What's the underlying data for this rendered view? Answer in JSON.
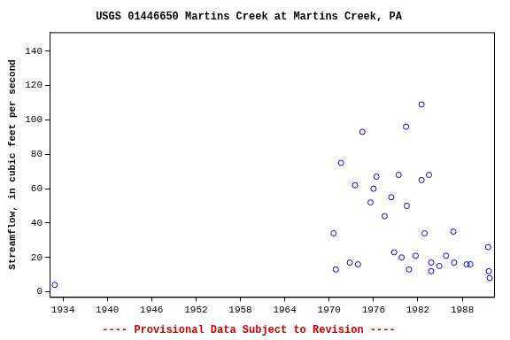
{
  "chart_data": {
    "type": "scatter",
    "title": "USGS 01446650 Martins Creek at Martins Creek, PA",
    "annotation": "---- Provisional Data Subject to Revision ----",
    "y_label": "Streamflow, in cubic feet per second",
    "x": [
      1932.9,
      1970.6,
      1970.9,
      1971.6,
      1972.8,
      1973.5,
      1973.9,
      1974.5,
      1975.6,
      1976.0,
      1976.4,
      1977.5,
      1978.4,
      1978.8,
      1979.4,
      1979.8,
      1980.4,
      1980.5,
      1980.8,
      1981.7,
      1982.5,
      1982.5,
      1982.9,
      1983.5,
      1983.8,
      1983.8,
      1984.9,
      1985.8,
      1986.8,
      1986.9,
      1988.6,
      1989.1,
      1991.5,
      1991.6,
      1991.7
    ],
    "values": [
      4,
      34,
      13,
      75,
      17,
      62,
      16,
      93,
      52,
      60,
      67,
      44,
      55,
      23,
      68,
      20,
      96,
      50,
      13,
      21,
      109,
      65,
      34,
      68,
      17,
      12,
      15,
      21,
      35,
      17,
      16,
      16,
      26,
      12,
      8
    ],
    "color": "#0000cc",
    "marker": "circle",
    "xlim": [
      1932.2,
      1992.3
    ],
    "xticks": [
      1934,
      1940,
      1946,
      1952,
      1958,
      1964,
      1970,
      1976,
      1982,
      1988
    ],
    "ylim": [
      -3,
      151
    ],
    "yticks": [
      0,
      20,
      40,
      60,
      80,
      100,
      120,
      140
    ],
    "grid": false
  }
}
